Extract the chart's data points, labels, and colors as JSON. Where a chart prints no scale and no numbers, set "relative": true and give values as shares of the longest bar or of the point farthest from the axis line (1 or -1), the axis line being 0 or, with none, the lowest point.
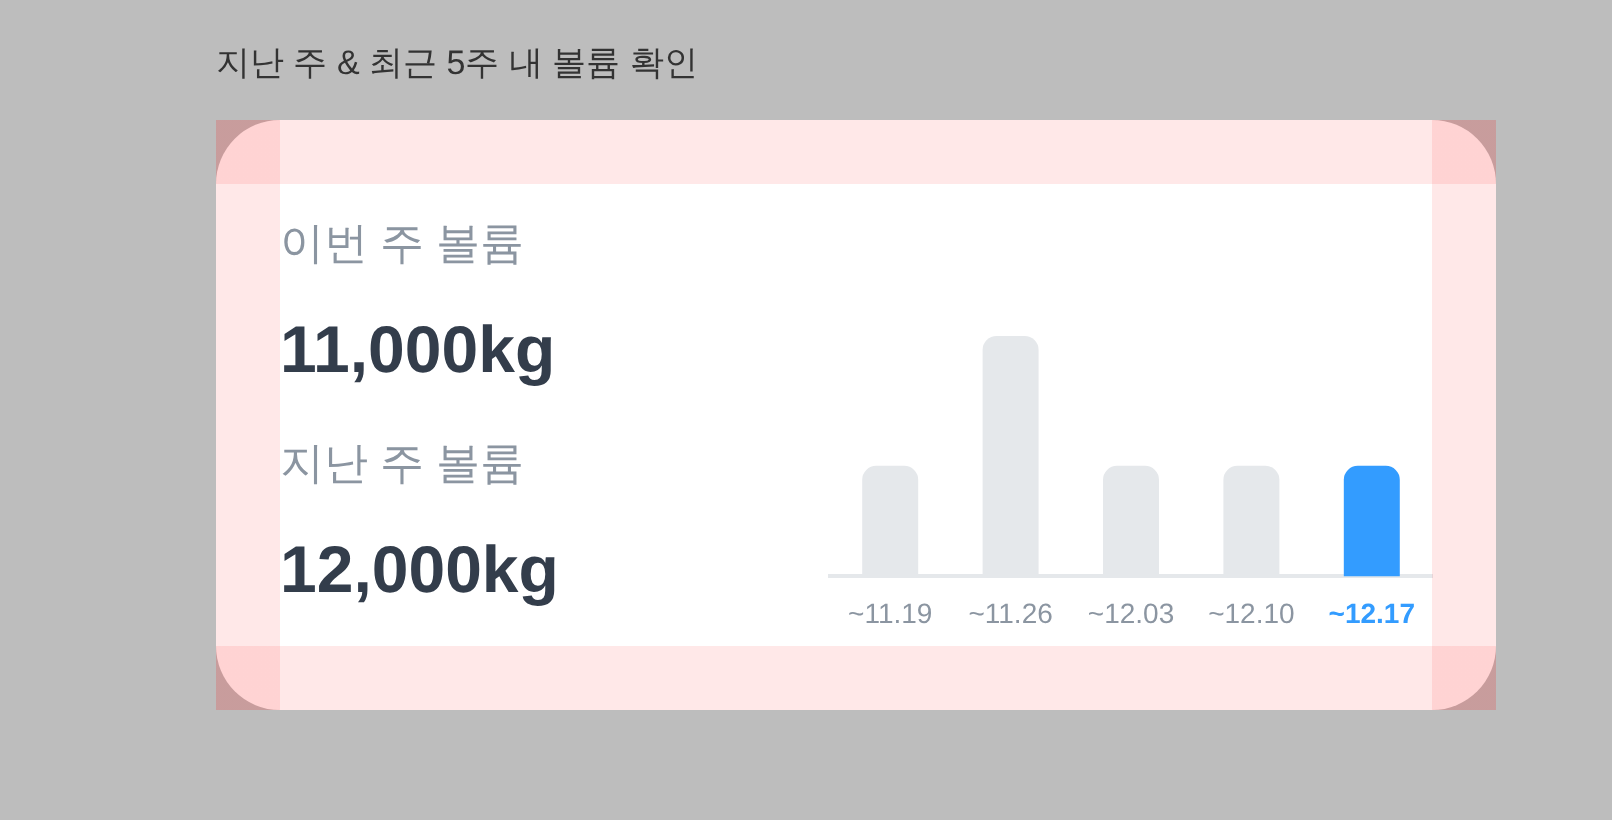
{
  "chart_data": [
    {
      "type": "other",
      "title": "지난 주 & 최근 5주 내 볼륨 확인",
      "annotations": [
        "이번 주 볼륨",
        "11,000kg",
        "지난 주 볼륨",
        "12,000kg"
      ]
    },
    {
      "type": "bar",
      "categories": [
        "~11.19",
        "~11.26",
        "~12.03",
        "~12.10",
        "~12.17"
      ],
      "values": [
        0.46,
        1,
        0.46,
        0.46,
        0.46
      ],
      "colors": [
        "#e5e8eb",
        "#e5e8eb",
        "#e5e8eb",
        "#e5e8eb",
        "#339cff"
      ],
      "relative": true
    }
  ]
}
